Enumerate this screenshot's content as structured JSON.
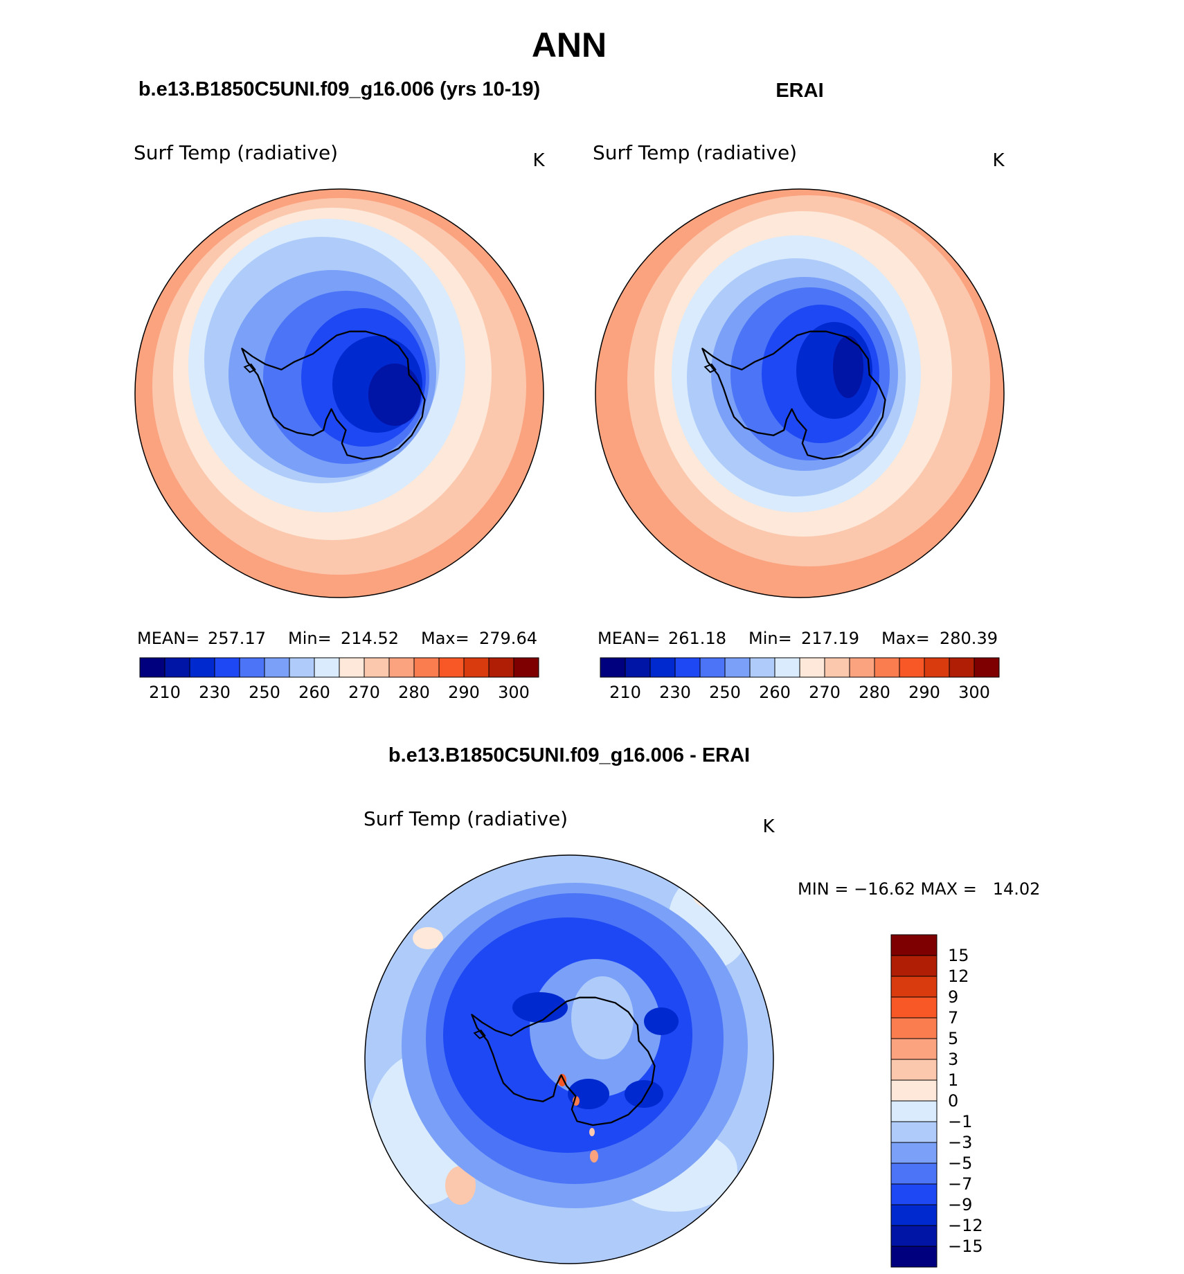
{
  "title": "ANN",
  "panels": [
    {
      "id": "model",
      "header": "b.e13.B1850C5UNI.f09_g16.006 (yrs 10-19)",
      "variable": "Surf Temp (radiative)",
      "units": "K",
      "stats": {
        "mean": "257.17",
        "min": "214.52",
        "max": "279.64"
      },
      "stats_labels": {
        "mean": "MEAN=",
        "min": "Min=",
        "max": "Max="
      }
    },
    {
      "id": "obs",
      "header": "ERAI",
      "variable": "Surf Temp (radiative)",
      "units": "K",
      "stats": {
        "mean": "261.18",
        "min": "217.19",
        "max": "280.39"
      },
      "stats_labels": {
        "mean": "MEAN=",
        "min": "Min=",
        "max": "Max="
      }
    },
    {
      "id": "diff",
      "header": "b.e13.B1850C5UNI.f09_g16.006 - ERAI",
      "variable": "Surf Temp (radiative)",
      "units": "K",
      "stats_text": "MIN = −16.62 MAX =   14.02"
    }
  ],
  "abs_colorbar": {
    "colors": [
      "#00007f",
      "#0014a5",
      "#0029d0",
      "#1e48f4",
      "#4c74f7",
      "#7aa0f8",
      "#aecbfa",
      "#d9ebfc",
      "#fde8d9",
      "#fcc8ad",
      "#fba27f",
      "#f97d4f",
      "#f85826",
      "#d93b0f",
      "#b01e06",
      "#7f0000"
    ],
    "tick_labels": [
      "210",
      "230",
      "250",
      "260",
      "270",
      "280",
      "290",
      "300"
    ]
  },
  "diff_colorbar": {
    "colors": [
      "#00007f",
      "#0014a5",
      "#0029d0",
      "#1e48f4",
      "#4c74f7",
      "#7aa0f8",
      "#aecbfa",
      "#d9ebfc",
      "#fde8d9",
      "#fcc8ad",
      "#fba27f",
      "#f97d4f",
      "#f85826",
      "#d93b0f",
      "#b01e06",
      "#7f0000"
    ],
    "tick_labels": [
      "−15",
      "−12",
      "−9",
      "−7",
      "−5",
      "−3",
      "−1",
      "0",
      "1",
      "3",
      "5",
      "7",
      "9",
      "12",
      "15"
    ]
  }
}
